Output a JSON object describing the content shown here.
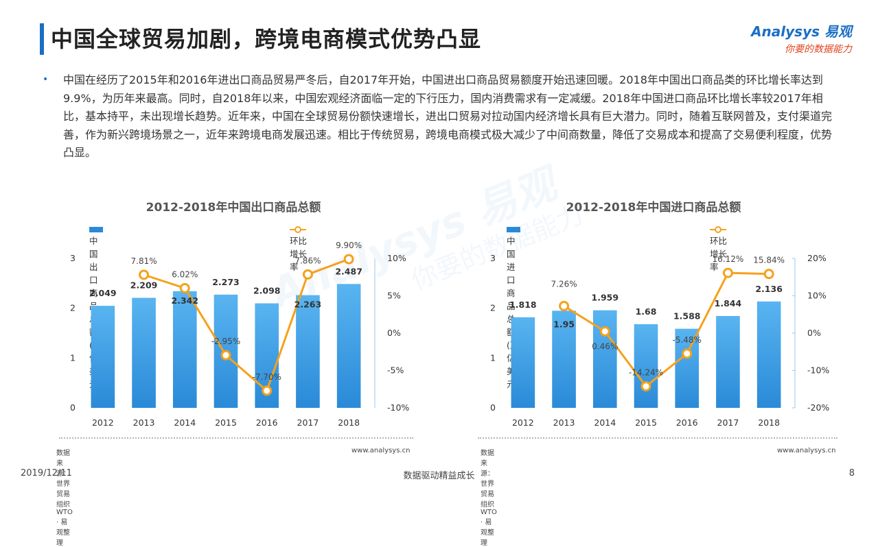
{
  "header": {
    "title": "中国全球贸易加剧，跨境电商模式优势凸显",
    "logo_line1": "Analysys 易观",
    "logo_line2": "你要的数据能力"
  },
  "body": {
    "bullet": "•",
    "paragraph": "中国在经历了2015年和2016年进出口商品贸易严冬后，自2017年开始，中国进出口商品贸易额度开始迅速回暖。2018年中国出口商品类的环比增长率达到9.9%，为历年来最高。同时，自2018年以来，中国宏观经济面临一定的下行压力，国内消费需求有一定减缓。2018年中国进口商品环比增长率较2017年相比，基本持平，未出现增长趋势。近年来，中国在全球贸易份额快速增长，进出口贸易对拉动国内经济增长具有巨大潜力。同时，随着互联网普及，支付渠道完善，作为新兴跨境场景之一，近年来跨境电商发展迅速。相比于传统贸易，跨境电商模式极大减少了中间商数量，降低了交易成本和提高了交易便利程度，优势凸显。"
  },
  "footer": {
    "date": "2019/12/11",
    "slogan": "数据驱动精益成长",
    "page": "8"
  },
  "colors": {
    "bar": "#2a8ad8",
    "bar_light": "#59b4f0",
    "line": "#f5a11c",
    "title_accent": "#1a6fc4"
  },
  "chart_data": [
    {
      "type": "bar",
      "title": "2012-2018年中国出口商品总额",
      "categories": [
        "2012",
        "2013",
        "2014",
        "2015",
        "2016",
        "2017",
        "2018"
      ],
      "series": [
        {
          "name": "中国出口商品总额(万亿 美元 )",
          "axis": "left",
          "values": [
            2.049,
            2.209,
            2.342,
            2.273,
            2.098,
            2.263,
            2.487
          ],
          "labels": [
            "2.049",
            "2.209",
            "2.342",
            "2.273",
            "2.098",
            "2.263",
            "2.487"
          ]
        },
        {
          "name": "环比增长率",
          "type": "line",
          "axis": "right",
          "values": [
            null,
            7.81,
            6.02,
            -2.95,
            -7.7,
            7.86,
            9.9
          ],
          "labels": [
            "",
            "7.81%",
            "6.02%",
            "-2.95%",
            "-7.70%",
            "7.86%",
            "9.90%"
          ]
        }
      ],
      "ylim": [
        0,
        3
      ],
      "y_ticks": [
        "0",
        "1",
        "2",
        "3"
      ],
      "y2lim": [
        -10,
        10
      ],
      "y2_ticks": [
        "-10%",
        "-5%",
        "0%",
        "5%",
        "10%"
      ],
      "source": "数据来源：世界贸易组织WTO · 易观整理",
      "url": "www.analysys.cn"
    },
    {
      "type": "bar",
      "title": "2012-2018年中国进口商品总额",
      "categories": [
        "2012",
        "2013",
        "2014",
        "2015",
        "2016",
        "2017",
        "2018"
      ],
      "series": [
        {
          "name": "中国进口商品总额(万亿 美元 )",
          "axis": "left",
          "values": [
            1.818,
            1.95,
            1.959,
            1.68,
            1.588,
            1.844,
            2.136
          ],
          "labels": [
            "1.818",
            "1.95",
            "1.959",
            "1.68",
            "1.588",
            "1.844",
            "2.136"
          ]
        },
        {
          "name": "环比增长率",
          "type": "line",
          "axis": "right",
          "values": [
            null,
            7.26,
            0.46,
            -14.24,
            -5.48,
            16.12,
            15.84
          ],
          "labels": [
            "",
            "7.26%",
            "0.46%",
            "-14.24%",
            "-5.48%",
            "16.12%",
            "15.84%"
          ]
        }
      ],
      "ylim": [
        0,
        3
      ],
      "y_ticks": [
        "0",
        "1",
        "2",
        "3"
      ],
      "y2lim": [
        -20,
        20
      ],
      "y2_ticks": [
        "-20%",
        "-10%",
        "0%",
        "10%",
        "20%"
      ],
      "source": "数据来源：世界贸易组织WTO · 易观整理",
      "url": "www.analysys.cn"
    }
  ]
}
